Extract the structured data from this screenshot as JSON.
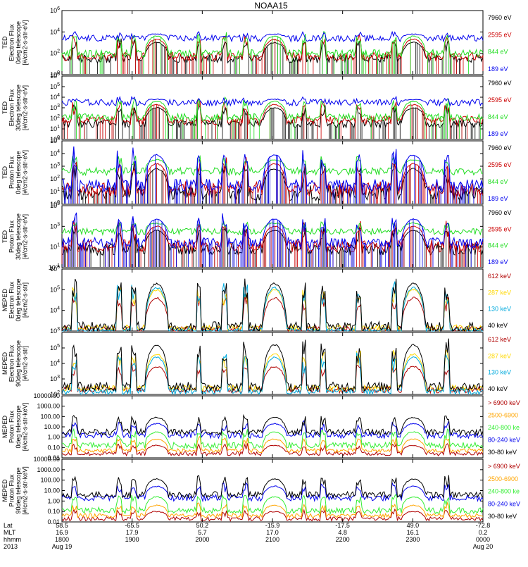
{
  "title": "NOAA15",
  "colors": {
    "black": "#000000",
    "red": "#cc0000",
    "darkred": "#b00000",
    "green": "#22dd22",
    "blue": "#0000ee",
    "yellow": "#ffd800",
    "orange": "#ffa500",
    "cyan": "#00aadd",
    "lgreen": "#33ee33"
  },
  "chart_data": [
    {
      "type": "line",
      "ylabel": [
        "TED",
        "Electron Flux",
        "0deg telescope",
        "[#/cm2-s-str-eV]"
      ],
      "yscale": "log",
      "ylim": [
        1,
        1000000
      ],
      "ytick_labels": [
        "10^0",
        "10^2",
        "10^4",
        "10^6"
      ],
      "series": [
        {
          "name": "7960 eV",
          "color": "black",
          "baseline": 1.5,
          "peak": 3.0,
          "noise": 0.4,
          "drop": 0.25
        },
        {
          "name": "2595 eV",
          "color": "red",
          "baseline": 1.7,
          "peak": 3.3,
          "noise": 0.4,
          "drop": 0.2
        },
        {
          "name": "844 eV",
          "color": "green",
          "baseline": 2.0,
          "peak": 3.6,
          "noise": 0.35,
          "drop": 0.15
        },
        {
          "name": "189 eV",
          "color": "blue",
          "baseline": 3.4,
          "peak": 3.8,
          "noise": 0.3,
          "drop": 0.0
        }
      ]
    },
    {
      "type": "line",
      "ylabel": [
        "TED",
        "Electron Flux",
        "30deg telescope",
        "[#/cm2-s-str-eV]"
      ],
      "yscale": "log",
      "ylim": [
        1,
        1000000
      ],
      "ytick_labels": [
        "10^0",
        "10^1",
        "10^2",
        "10^3",
        "10^4",
        "10^5",
        "10^6"
      ],
      "series": [
        {
          "name": "7960 eV",
          "color": "black",
          "baseline": 1.5,
          "peak": 3.0,
          "noise": 0.4,
          "drop": 0.3
        },
        {
          "name": "2595 eV",
          "color": "red",
          "baseline": 1.8,
          "peak": 3.3,
          "noise": 0.4,
          "drop": 0.2
        },
        {
          "name": "844 eV",
          "color": "green",
          "baseline": 2.1,
          "peak": 3.6,
          "noise": 0.35,
          "drop": 0.1
        },
        {
          "name": "189 eV",
          "color": "blue",
          "baseline": 3.5,
          "peak": 3.8,
          "noise": 0.3,
          "drop": 0.0
        }
      ]
    },
    {
      "type": "line",
      "ylabel": [
        "TED",
        "Proton Flux",
        "0deg telescope",
        "[#/cm2-s-str-eV]"
      ],
      "yscale": "log",
      "ylim": [
        1,
        100000
      ],
      "ytick_labels": [
        "10^0",
        "10^1",
        "10^2",
        "10^3",
        "10^4",
        "10^5"
      ],
      "series": [
        {
          "name": "7960 eV",
          "color": "black",
          "baseline": 0.9,
          "peak": 2.8,
          "noise": 0.6,
          "drop": 0.35
        },
        {
          "name": "2595 eV",
          "color": "red",
          "baseline": 1.2,
          "peak": 3.2,
          "noise": 0.6,
          "drop": 0.3
        },
        {
          "name": "844 eV",
          "color": "green",
          "baseline": 2.6,
          "peak": 3.5,
          "noise": 0.3,
          "drop": 0.0
        },
        {
          "name": "189 eV",
          "color": "blue",
          "baseline": 1.5,
          "peak": 3.9,
          "noise": 0.5,
          "drop": 0.3
        }
      ]
    },
    {
      "type": "line",
      "ylabel": [
        "TED",
        "Proton Flux",
        "30deg telescope",
        "[#/cm2-s-str-eV]"
      ],
      "yscale": "log",
      "ylim": [
        0.1,
        100000
      ],
      "ytick_labels": [
        "10^-1",
        "10^1",
        "10^3",
        "10^5"
      ],
      "series": [
        {
          "name": "7960 eV",
          "color": "black",
          "baseline": 0.8,
          "peak": 2.6,
          "noise": 0.6,
          "drop": 0.35
        },
        {
          "name": "2595 eV",
          "color": "red",
          "baseline": 1.1,
          "peak": 3.0,
          "noise": 0.6,
          "drop": 0.3
        },
        {
          "name": "844 eV",
          "color": "green",
          "baseline": 2.5,
          "peak": 3.3,
          "noise": 0.3,
          "drop": 0.0
        },
        {
          "name": "189 eV",
          "color": "blue",
          "baseline": 1.4,
          "peak": 3.7,
          "noise": 0.5,
          "drop": 0.3
        }
      ]
    },
    {
      "type": "line",
      "ylabel": [
        "MEPED",
        "Electron Flux",
        "0deg telescope",
        "[#/cm2-s-str]"
      ],
      "yscale": "log",
      "ylim": [
        1000,
        1000000
      ],
      "ytick_labels": [
        "10^3",
        "10^4",
        "10^5",
        "10^6"
      ],
      "series": [
        {
          "name": "612 keV",
          "color": "darkred",
          "baseline": 3.1,
          "peak": 4.6,
          "noise": 0.15,
          "drop": 0.0
        },
        {
          "name": "287 keV",
          "color": "yellow",
          "baseline": 3.15,
          "peak": 5.0,
          "noise": 0.15,
          "drop": 0.0
        },
        {
          "name": "130 keV",
          "color": "cyan",
          "baseline": 3.05,
          "peak": 5.1,
          "noise": 0.1,
          "drop": 0.0
        },
        {
          "name": "40 keV",
          "color": "black",
          "baseline": 3.2,
          "peak": 5.3,
          "noise": 0.25,
          "drop": 0.0
        }
      ]
    },
    {
      "type": "line",
      "ylabel": [
        "MEPED",
        "Electron Flux",
        "90deg telescope",
        "[#/cm2-s-str]"
      ],
      "yscale": "log",
      "ylim": [
        100,
        1000000
      ],
      "ytick_labels": [
        "10^2",
        "10^3",
        "10^4",
        "10^5"
      ],
      "series": [
        {
          "name": "612 keV",
          "color": "darkred",
          "baseline": 2.3,
          "peak": 3.8,
          "noise": 0.2,
          "drop": 0.0
        },
        {
          "name": "287 keV",
          "color": "yellow",
          "baseline": 2.4,
          "peak": 4.6,
          "noise": 0.2,
          "drop": 0.0
        },
        {
          "name": "130 keV",
          "color": "cyan",
          "baseline": 2.2,
          "peak": 4.4,
          "noise": 0.2,
          "drop": 0.0
        },
        {
          "name": "40 keV",
          "color": "black",
          "baseline": 2.5,
          "peak": 5.2,
          "noise": 0.3,
          "drop": 0.0
        }
      ]
    },
    {
      "type": "line",
      "ylabel": [
        "MEPED",
        "Proton Flux",
        "0deg telescope",
        "[#/cm2-s-str-keV]"
      ],
      "yscale": "log",
      "ylim": [
        0.01,
        10000
      ],
      "ytick_labels": [
        "10000.00",
        "1000.00",
        "100.00",
        "10.00",
        "1.00",
        "0.10",
        "0.01"
      ],
      "series": [
        {
          "name": "> 6900 keV",
          "color": "darkred",
          "baseline": -1.6,
          "peak": -0.8,
          "noise": 0.2,
          "drop": 0.0
        },
        {
          "name": "2500-6900",
          "color": "orange",
          "baseline": -1.3,
          "peak": -0.2,
          "noise": 0.2,
          "drop": 0.0
        },
        {
          "name": "240-800 ke",
          "color": "lgreen",
          "baseline": -0.8,
          "peak": 0.5,
          "noise": 0.3,
          "drop": 0.0
        },
        {
          "name": "80-240 keV",
          "color": "blue",
          "baseline": 0.2,
          "peak": 1.3,
          "noise": 0.3,
          "drop": 0.0
        },
        {
          "name": "30-80 keV",
          "color": "black",
          "baseline": 0.5,
          "peak": 1.9,
          "noise": 0.3,
          "drop": 0.0
        }
      ]
    },
    {
      "type": "line",
      "ylabel": [
        "MEPED",
        "Proton Flux",
        "90deg telescope",
        "[#/cm2-s-str-keV]"
      ],
      "yscale": "log",
      "ylim": [
        0.01,
        10000
      ],
      "ytick_labels": [
        "10000.00",
        "1000.00",
        "100.00",
        "10.00",
        "1.00",
        "0.10",
        "0.01"
      ],
      "series": [
        {
          "name": "> 6900 keV",
          "color": "darkred",
          "baseline": -1.7,
          "peak": -1.0,
          "noise": 0.2,
          "drop": 0.0
        },
        {
          "name": "2500-6900",
          "color": "orange",
          "baseline": -1.4,
          "peak": -0.4,
          "noise": 0.2,
          "drop": 0.0
        },
        {
          "name": "240-800 ke",
          "color": "lgreen",
          "baseline": -0.9,
          "peak": 0.4,
          "noise": 0.3,
          "drop": 0.0
        },
        {
          "name": "80-240 keV",
          "color": "blue",
          "baseline": 0.3,
          "peak": 1.4,
          "noise": 0.3,
          "drop": 0.0
        },
        {
          "name": "30-80 keV",
          "color": "black",
          "baseline": 0.6,
          "peak": 2.1,
          "noise": 0.3,
          "drop": 0.0
        }
      ]
    }
  ],
  "x_axis": {
    "row_labels": [
      "Lat",
      "MLT",
      "hhmm",
      "2013"
    ],
    "ticks": [
      {
        "values": [
          "58.5",
          "16.9",
          "1800",
          "Aug 19"
        ]
      },
      {
        "values": [
          "-65.5",
          "17.9",
          "1900",
          ""
        ]
      },
      {
        "values": [
          "50.2",
          "5.7",
          "2000",
          ""
        ]
      },
      {
        "values": [
          "-15.9",
          "17.0",
          "2100",
          ""
        ]
      },
      {
        "values": [
          "-17.5",
          "4.8",
          "2200",
          ""
        ]
      },
      {
        "values": [
          "49.0",
          "16.1",
          "2300",
          ""
        ]
      },
      {
        "values": [
          "-72.8",
          "0.2",
          "0000",
          "Aug 20"
        ]
      }
    ]
  }
}
